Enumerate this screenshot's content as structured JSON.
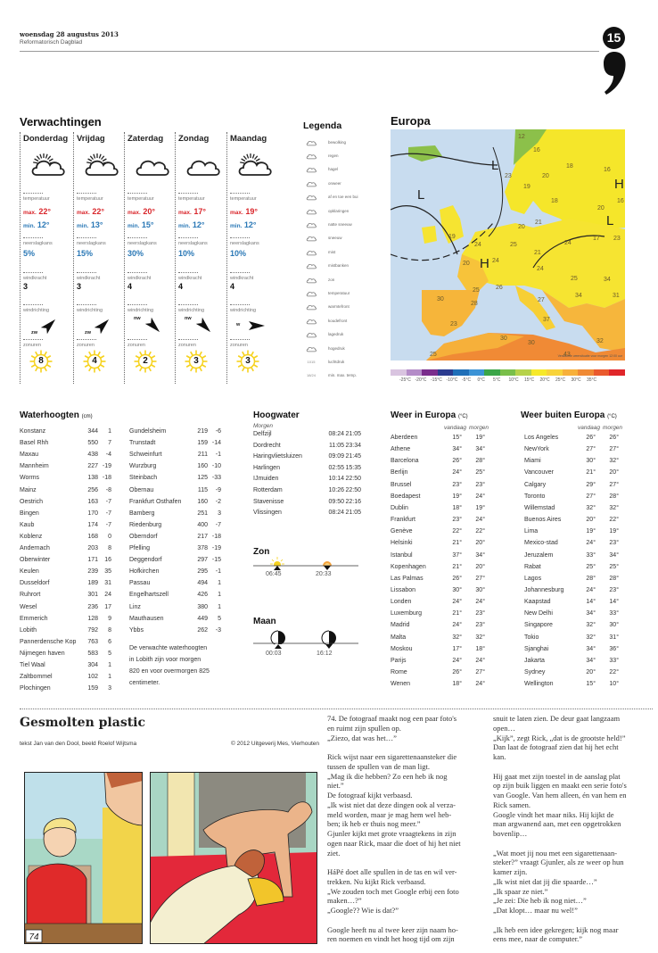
{
  "header": {
    "date": "woensdag 28 augustus 2013",
    "paper": "Reformatorisch Dagblad",
    "page_number": "15"
  },
  "forecast": {
    "title": "Verwachtingen",
    "labels": {
      "temp": "temperatuur",
      "max": "max.",
      "min": "min.",
      "rain": "neerslagkans",
      "wind": "windkracht",
      "dir": "windrichting",
      "sun": "zonuren"
    },
    "days": [
      {
        "name": "Donderdag",
        "icon": "sun-cloud-icon",
        "max": "22°",
        "min": "12°",
        "rain": "5%",
        "wind": "3",
        "dir": "zw",
        "sun": "8"
      },
      {
        "name": "Vrijdag",
        "icon": "sun-cloud-icon",
        "max": "22°",
        "min": "13°",
        "rain": "15%",
        "wind": "3",
        "dir": "zw",
        "sun": "4"
      },
      {
        "name": "Zaterdag",
        "icon": "cloud-icon",
        "max": "20°",
        "min": "15°",
        "rain": "30%",
        "wind": "4",
        "dir": "nw",
        "sun": "2"
      },
      {
        "name": "Zondag",
        "icon": "cloud-icon",
        "max": "17°",
        "min": "12°",
        "rain": "10%",
        "wind": "4",
        "dir": "nw",
        "sun": "3"
      },
      {
        "name": "Maandag",
        "icon": "sun-cloud-icon",
        "max": "19°",
        "min": "12°",
        "rain": "10%",
        "wind": "4",
        "dir": "w",
        "sun": "3"
      }
    ]
  },
  "legend": {
    "title": "Legenda",
    "items": [
      {
        "icon": "cloud-icon",
        "label": "bewolking"
      },
      {
        "icon": "rain-icon",
        "label": "regen"
      },
      {
        "icon": "hail-icon",
        "label": "hagel"
      },
      {
        "icon": "thunder-icon",
        "label": "onweer"
      },
      {
        "icon": "shower-icon",
        "label": "af en toe een bui"
      },
      {
        "icon": "clearing-icon",
        "label": "opklaringen"
      },
      {
        "icon": "sleet-icon",
        "label": "natte sneeuw"
      },
      {
        "icon": "snow-icon",
        "label": "sneeuw"
      },
      {
        "icon": "fog-icon",
        "label": "mist"
      },
      {
        "icon": "fog-banks-icon",
        "label": "mistbanken"
      },
      {
        "icon": "sun-icon",
        "label": "zon"
      },
      {
        "icon": "temperature-icon",
        "label": "temperatuur"
      },
      {
        "icon": "warm-front-icon",
        "label": "warmtefront"
      },
      {
        "icon": "cold-front-icon",
        "label": "koudefront"
      },
      {
        "icon": "low-pressure-icon",
        "label": "lagedruk"
      },
      {
        "icon": "high-pressure-icon",
        "label": "hogedruk"
      },
      {
        "icon": "pressure-icon",
        "label": "luchtdruk",
        "symbol": "1015"
      },
      {
        "icon": "minmax-icon",
        "label": "min. max. temp.",
        "symbol": "18/24"
      }
    ]
  },
  "europe": {
    "title": "Europa",
    "caption": "Verwachte weersituatie voor morgen 12:00 uur",
    "temps": [
      "12",
      "16",
      "18",
      "16",
      "20",
      "23",
      "19",
      "18",
      "20",
      "16",
      "20",
      "21",
      "19",
      "24",
      "25",
      "24",
      "17",
      "23",
      "21",
      "20",
      "24",
      "24",
      "25",
      "34",
      "25",
      "26",
      "30",
      "28",
      "27",
      "34",
      "31",
      "23",
      "37",
      "30",
      "30",
      "32",
      "25",
      "43"
    ],
    "pressure": [
      "L",
      "L",
      "H",
      "L",
      "H"
    ],
    "scale": {
      "labels": [
        "-25°C",
        "-20°C",
        "-15°C",
        "-10°C",
        "-5°C",
        "0°C",
        "5°C",
        "10°C",
        "15°C",
        "20°C",
        "25°C",
        "30°C",
        "35°C"
      ],
      "colors": [
        "#d9c4e0",
        "#b48cc8",
        "#7a2d8c",
        "#2b3b8f",
        "#1f6fb8",
        "#3b93d6",
        "#3aa548",
        "#79bf4a",
        "#b6d24a",
        "#f6e92a",
        "#f8d33a",
        "#f7b03a",
        "#f08a35",
        "#ea5a2d",
        "#e0262a"
      ]
    }
  },
  "water": {
    "title": "Waterhoogten",
    "unit": "(cm)",
    "col1": [
      [
        "Konstanz",
        "344",
        "1"
      ],
      [
        "Basel Rhh",
        "550",
        "7"
      ],
      [
        "Maxau",
        "438",
        "-4"
      ],
      [
        "Mannheim",
        "227",
        "-19"
      ],
      [
        "Worms",
        "138",
        "-18"
      ],
      [
        "Mainz",
        "256",
        "-8"
      ],
      [
        "Oestrich",
        "163",
        "-7"
      ],
      [
        "Bingen",
        "170",
        "-7"
      ],
      [
        "Kaub",
        "174",
        "-7"
      ],
      [
        "Koblenz",
        "168",
        "0"
      ],
      [
        "Andernach",
        "203",
        "8"
      ],
      [
        "Oberwinter",
        "171",
        "16"
      ],
      [
        "Keulen",
        "239",
        "35"
      ],
      [
        "Dusseldorf",
        "189",
        "31"
      ],
      [
        "Ruhrort",
        "301",
        "24"
      ],
      [
        "Wesel",
        "236",
        "17"
      ],
      [
        "Emmerich",
        "128",
        "9"
      ],
      [
        "Lobith",
        "792",
        "8"
      ],
      [
        "Pannerdensche Kop",
        "763",
        "6"
      ],
      [
        "Nijmegen haven",
        "583",
        "5"
      ],
      [
        "Tiel Waal",
        "304",
        "1"
      ],
      [
        "Zaltbommel",
        "102",
        "1"
      ],
      [
        "Plochingen",
        "159",
        "3"
      ]
    ],
    "col2": [
      [
        "Gundelsheim",
        "219",
        "-6"
      ],
      [
        "Trunstadt",
        "159",
        "-14"
      ],
      [
        "Schweinfurt",
        "211",
        "-1"
      ],
      [
        "Wurzburg",
        "160",
        "-10"
      ],
      [
        "Steinbach",
        "125",
        "-33"
      ],
      [
        "Obernau",
        "115",
        "-9"
      ],
      [
        "Frankfurt Osthafen",
        "160",
        "-2"
      ],
      [
        "Bamberg",
        "251",
        "3"
      ],
      [
        "Riedenburg",
        "400",
        "-7"
      ],
      [
        "Oberndorf",
        "217",
        "-18"
      ],
      [
        "Pfelling",
        "378",
        "-19"
      ],
      [
        "Deggendorf",
        "297",
        "-15"
      ],
      [
        "Hofkirchen",
        "295",
        "-1"
      ],
      [
        "Passau",
        "494",
        "1"
      ],
      [
        "Engelhartszell",
        "426",
        "1"
      ],
      [
        "Linz",
        "380",
        "1"
      ],
      [
        "Mauthausen",
        "449",
        "5"
      ],
      [
        "Ybbs",
        "262",
        "-3"
      ]
    ],
    "note": [
      "De verwachte waterhoogten",
      "in Lobith zijn voor morgen",
      "820 en voor overmorgen 825",
      "centimeter."
    ]
  },
  "tide": {
    "title": "Hoogwater",
    "subtitle": "Morgen",
    "rows": [
      [
        "Delfzijl",
        "08:24",
        "21:05"
      ],
      [
        "Dordrecht",
        "11:05",
        "23:34"
      ],
      [
        "Haringvlietsluizen",
        "09:09",
        "21:45"
      ],
      [
        "Harlingen",
        "02:55",
        "15:35"
      ],
      [
        "IJmuiden",
        "10:14",
        "22:50"
      ],
      [
        "Rotterdam",
        "10:26",
        "22:50"
      ],
      [
        "Stavenisse",
        "09:50",
        "22:16"
      ],
      [
        "Vlissingen",
        "08:24",
        "21:05"
      ]
    ]
  },
  "sun": {
    "title": "Zon",
    "rise": "06:45",
    "set": "20:33"
  },
  "moon": {
    "title": "Maan",
    "rise": "00:03",
    "set": "16:12"
  },
  "weather_eu": {
    "title": "Weer in Europa",
    "unit": "(°C)",
    "col_today": "vandaag",
    "col_tomorrow": "morgen",
    "rows": [
      [
        "Aberdeen",
        "15°",
        "19°"
      ],
      [
        "Athene",
        "34°",
        "34°"
      ],
      [
        "Barcelona",
        "26°",
        "28°"
      ],
      [
        "Berlijn",
        "24°",
        "25°"
      ],
      [
        "Brussel",
        "23°",
        "23°"
      ],
      [
        "Boedapest",
        "19°",
        "24°"
      ],
      [
        "Dublin",
        "18°",
        "19°"
      ],
      [
        "Frankfurt",
        "23°",
        "24°"
      ],
      [
        "Genève",
        "22°",
        "22°"
      ],
      [
        "Helsinki",
        "21°",
        "20°"
      ],
      [
        "Istanbul",
        "37°",
        "34°"
      ],
      [
        "Kopenhagen",
        "21°",
        "20°"
      ],
      [
        "Las Palmas",
        "26°",
        "27°"
      ],
      [
        "Lissabon",
        "30°",
        "30°"
      ],
      [
        "Londen",
        "24°",
        "24°"
      ],
      [
        "Luxemburg",
        "21°",
        "23°"
      ],
      [
        "Madrid",
        "24°",
        "23°"
      ],
      [
        "Malta",
        "32°",
        "32°"
      ],
      [
        "Moskou",
        "17°",
        "18°"
      ],
      [
        "Parijs",
        "24°",
        "24°"
      ],
      [
        "Rome",
        "26°",
        "27°"
      ],
      [
        "Wenen",
        "18°",
        "24°"
      ]
    ]
  },
  "weather_world": {
    "title": "Weer buiten Europa",
    "unit": "(°C)",
    "col_today": "vandaag",
    "col_tomorrow": "morgen",
    "rows": [
      [
        "Los Angeles",
        "26°",
        "26°"
      ],
      [
        "NewYork",
        "27°",
        "27°"
      ],
      [
        "Miami",
        "30°",
        "32°"
      ],
      [
        "Vancouver",
        "21°",
        "20°"
      ],
      [
        "Calgary",
        "29°",
        "27°"
      ],
      [
        "Toronto",
        "27°",
        "28°"
      ],
      [
        "Willemstad",
        "32°",
        "32°"
      ],
      [
        "Buenos Aires",
        "20°",
        "22°"
      ],
      [
        "Lima",
        "19°",
        "19°"
      ],
      [
        "Mexico-stad",
        "24°",
        "23°"
      ],
      [
        "Jeruzalem",
        "33°",
        "34°"
      ],
      [
        "Rabat",
        "25°",
        "25°"
      ],
      [
        "Lagos",
        "28°",
        "28°"
      ],
      [
        "Johannesburg",
        "24°",
        "23°"
      ],
      [
        "Kaapstad",
        "14°",
        "14°"
      ],
      [
        "New Delhi",
        "34°",
        "33°"
      ],
      [
        "Singapore",
        "32°",
        "30°"
      ],
      [
        "Tokio",
        "32°",
        "31°"
      ],
      [
        "Sjanghai",
        "34°",
        "36°"
      ],
      [
        "Jakarta",
        "34°",
        "33°"
      ],
      [
        "Sydney",
        "20°",
        "22°"
      ],
      [
        "Wellington",
        "15°",
        "10°"
      ]
    ]
  },
  "comic": {
    "title": "Gesmolten plastic",
    "credits": "tekst Jan van den Dool, beeld Roelof Wijtsma",
    "copyright": "© 2012 Uitgeverij Mes, Vierhouten",
    "panel_number": "74",
    "col1": [
      "74. De fotograaf maakt nog een paar foto's",
      "en ruimt zijn spullen op.",
      "„Ziezo, dat was het…”",
      "",
      "Rick wijst naar een sigarettenaansteker die",
      "tussen de spullen van de man ligt.",
      "„Mag ik die hebben? Zo een heb ik nog",
      "niet.”",
      "De fotograaf kijkt verbaasd.",
      "„Ik wist niet dat deze dingen ook al verza-",
      "meld worden, maar je mag hem wel heb-",
      "ben; ik heb er thuis nog meer.”",
      "Gjunler kijkt met grote vraagtekens in zijn",
      "ogen naar Rick, maar die doet of hij het niet",
      "ziet.",
      "",
      "HáPé doet alle spullen in de tas en wil ver-",
      "trekken. Nu kijkt Rick verbaasd.",
      "„We zouden toch met Google erbij een foto",
      "maken…?”",
      "„Google?? Wie is dat?”",
      "",
      "Google heeft nu al twee keer zijn naam ho-",
      "ren noemen en vindt het hoog tijd om zijn"
    ],
    "col2": [
      "snuit te laten zien. De deur gaat langzaam",
      "open…",
      "„Kijk”, zegt Rick, „dat is de grootste held!”",
      "Dan laat de fotograaf zien dat hij het echt",
      "kan.",
      "",
      "Hij gaat met zijn toestel in de aanslag plat",
      "op zijn buik liggen en maakt een serie foto's",
      "van Google. Van hem alleen, én van hem en",
      "Rick samen.",
      "Google vindt het maar niks. Hij kijkt de",
      "man argwanend aan, met een opgetrokken",
      "bovenlip…",
      "",
      "„Wat moet jij nou met een sigarettenaan-",
      "steker?” vraagt Gjunler, als ze weer op hun",
      "kamer zijn.",
      "„Ik wist niet dat jij die spaarde…”",
      "„Ik spaar ze niet.”",
      "„Je zei: Die heb ik nog niet…”",
      "„Dat klopt… maar nu wel!”",
      "",
      "„Ik heb een idee gekregen; kijk nog maar",
      "eens mee, naar de computer.”"
    ]
  }
}
